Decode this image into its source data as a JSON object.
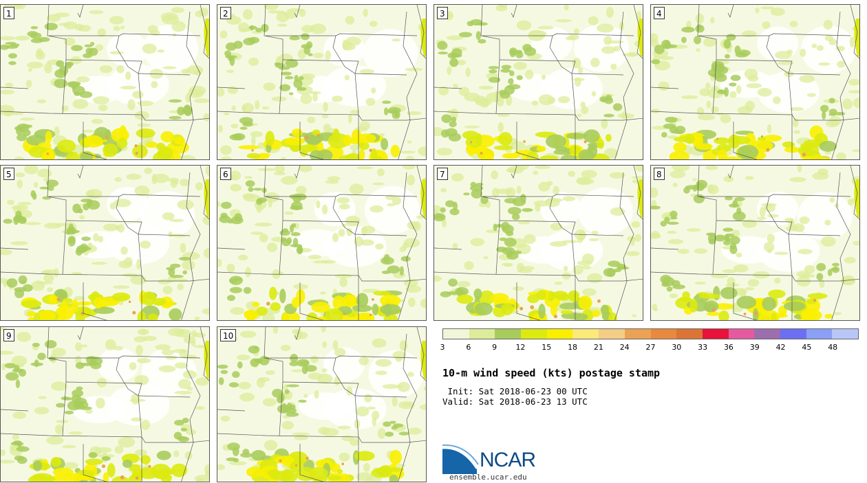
{
  "panels": [
    {
      "label": "1",
      "seed": 11
    },
    {
      "label": "2",
      "seed": 23
    },
    {
      "label": "3",
      "seed": 37
    },
    {
      "label": "4",
      "seed": 41
    },
    {
      "label": "5",
      "seed": 53
    },
    {
      "label": "6",
      "seed": 67
    },
    {
      "label": "7",
      "seed": 71
    },
    {
      "label": "8",
      "seed": 83
    },
    {
      "label": "9",
      "seed": 97
    },
    {
      "label": "10",
      "seed": 101
    }
  ],
  "colorbar": {
    "colors": [
      "#f2f6d8",
      "#dcec9a",
      "#a8cc5c",
      "#dcea10",
      "#faef00",
      "#fbe979",
      "#f4cd86",
      "#eba254",
      "#e78a3d",
      "#dc7436",
      "#e8123b",
      "#e55a9e",
      "#9c6eae",
      "#6d6ff3",
      "#8aa0f6",
      "#b9c7f8"
    ],
    "tick_labels": [
      "3",
      "6",
      "9",
      "12",
      "15",
      "18",
      "21",
      "24",
      "27",
      "30",
      "33",
      "36",
      "39",
      "42",
      "45",
      "48"
    ]
  },
  "title": "10-m wind speed (kts) postage stamp",
  "init_line": " Init: Sat 2018-06-23 00 UTC",
  "valid_line": "Valid: Sat 2018-06-23 13 UTC",
  "logo": {
    "text": "NCAR",
    "url": "ensemble.ucar.edu",
    "icon": "ncar-logo-icon"
  }
}
